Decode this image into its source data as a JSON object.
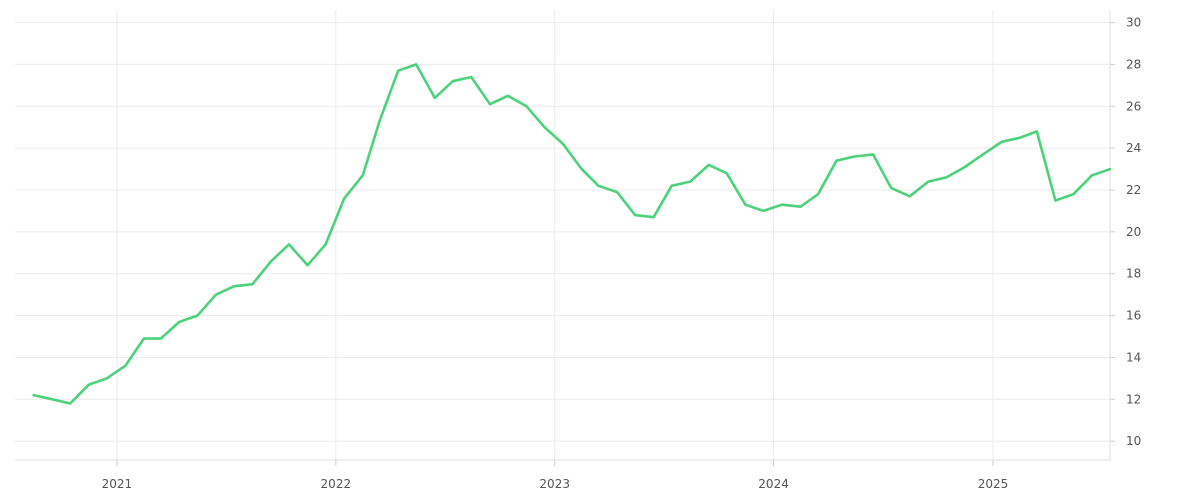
{
  "chart_data": {
    "type": "line",
    "title": "",
    "xlabel": "",
    "ylabel": "",
    "x_axis": {
      "type": "date",
      "ticks": [
        "2021",
        "2022",
        "2023",
        "2024",
        "2025"
      ],
      "range": [
        "2020-07-15",
        "2025-07-15"
      ]
    },
    "y_axis": {
      "position": "right",
      "ticks": [
        10,
        12,
        14,
        16,
        18,
        20,
        22,
        24,
        26,
        28,
        30
      ],
      "ylim": [
        9.1,
        30.6
      ]
    },
    "grid": true,
    "line_color": "#4cd27a",
    "series": [
      {
        "x": [
          "2020-08",
          "2020-09",
          "2020-10",
          "2020-11",
          "2020-12",
          "2021-01",
          "2021-02",
          "2021-03",
          "2021-04",
          "2021-05",
          "2021-06",
          "2021-07",
          "2021-08",
          "2021-09",
          "2021-10",
          "2021-11",
          "2021-12",
          "2022-01",
          "2022-02",
          "2022-03",
          "2022-04",
          "2022-05",
          "2022-06",
          "2022-07",
          "2022-08",
          "2022-09",
          "2022-10",
          "2022-11",
          "2022-12",
          "2023-01",
          "2023-02",
          "2023-03",
          "2023-04",
          "2023-05",
          "2023-06",
          "2023-07",
          "2023-08",
          "2023-09",
          "2023-10",
          "2023-11",
          "2023-12",
          "2024-01",
          "2024-02",
          "2024-03",
          "2024-04",
          "2024-05",
          "2024-06",
          "2024-07",
          "2024-08",
          "2024-09",
          "2024-10",
          "2024-11",
          "2024-12",
          "2025-01",
          "2025-02",
          "2025-03",
          "2025-04",
          "2025-05",
          "2025-06",
          "2025-07"
        ],
        "values": [
          12.2,
          12.0,
          11.8,
          12.7,
          13.0,
          13.6,
          14.9,
          14.9,
          15.7,
          16.0,
          17.0,
          17.4,
          17.5,
          18.6,
          19.4,
          18.4,
          19.4,
          21.6,
          22.7,
          25.3,
          27.7,
          28.0,
          26.4,
          27.2,
          27.4,
          26.1,
          26.5,
          26.0,
          25.0,
          24.2,
          23.0,
          22.2,
          21.9,
          20.8,
          20.7,
          22.2,
          22.4,
          23.2,
          22.8,
          21.3,
          21.0,
          21.3,
          21.2,
          21.8,
          23.4,
          23.6,
          23.7,
          22.1,
          21.7,
          22.4,
          22.6,
          23.1,
          23.7,
          24.3,
          24.5,
          24.8,
          21.5,
          21.8,
          22.7,
          23.0
        ]
      }
    ]
  }
}
